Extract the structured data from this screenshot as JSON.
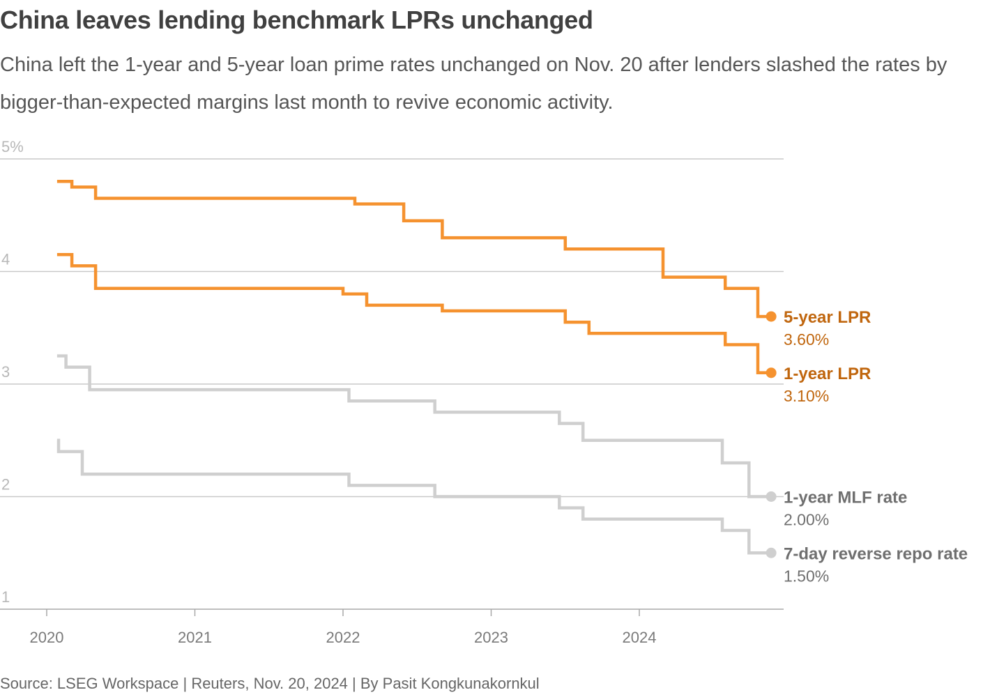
{
  "header": {
    "title": "China leaves lending benchmark LPRs unchanged",
    "subtitle": "China left the 1-year and 5-year loan prime rates unchanged on Nov. 20 after lenders slashed the rates by bigger-than-expected margins last month to revive economic activity."
  },
  "footer": {
    "source": "Source: LSEG Workspace | Reuters, Nov. 20, 2024 | By Pasit Kongkunakornkul"
  },
  "chart_data": {
    "type": "line",
    "step": true,
    "title": "China leaves lending benchmark LPRs unchanged",
    "xlabel": "",
    "ylabel": "",
    "xlim": [
      2019.8,
      2025.0
    ],
    "ylim": [
      1,
      5
    ],
    "grid": true,
    "y_ticks": [
      {
        "value": 5,
        "label": "5%"
      },
      {
        "value": 4,
        "label": "4"
      },
      {
        "value": 3,
        "label": "3"
      },
      {
        "value": 2,
        "label": "2"
      },
      {
        "value": 1,
        "label": "1"
      }
    ],
    "x_ticks": [
      {
        "value": 2020,
        "label": "2020"
      },
      {
        "value": 2021,
        "label": "2021"
      },
      {
        "value": 2022,
        "label": "2022"
      },
      {
        "value": 2023,
        "label": "2023"
      },
      {
        "value": 2024,
        "label": "2024"
      }
    ],
    "series": [
      {
        "name": "5-year LPR",
        "value_label": "3.60%",
        "color": "#f5922f",
        "label_color": "#c0660e",
        "points": [
          [
            2020.07,
            4.8
          ],
          [
            2020.17,
            4.75
          ],
          [
            2020.33,
            4.65
          ],
          [
            2022.08,
            4.6
          ],
          [
            2022.41,
            4.45
          ],
          [
            2022.67,
            4.3
          ],
          [
            2023.5,
            4.2
          ],
          [
            2024.16,
            3.95
          ],
          [
            2024.58,
            3.85
          ],
          [
            2024.8,
            3.6
          ],
          [
            2024.89,
            3.6
          ]
        ]
      },
      {
        "name": "1-year LPR",
        "value_label": "3.10%",
        "color": "#f5922f",
        "label_color": "#c0660e",
        "points": [
          [
            2020.07,
            4.15
          ],
          [
            2020.17,
            4.05
          ],
          [
            2020.33,
            3.85
          ],
          [
            2022.0,
            3.8
          ],
          [
            2022.16,
            3.7
          ],
          [
            2022.67,
            3.65
          ],
          [
            2023.5,
            3.55
          ],
          [
            2023.66,
            3.45
          ],
          [
            2024.58,
            3.35
          ],
          [
            2024.8,
            3.1
          ],
          [
            2024.89,
            3.1
          ]
        ]
      },
      {
        "name": "1-year MLF rate",
        "value_label": "2.00%",
        "color": "#cfcfcf",
        "label_color": "#6f6f6f",
        "points": [
          [
            2020.07,
            3.25
          ],
          [
            2020.13,
            3.15
          ],
          [
            2020.29,
            2.95
          ],
          [
            2022.04,
            2.85
          ],
          [
            2022.62,
            2.75
          ],
          [
            2023.46,
            2.65
          ],
          [
            2023.62,
            2.5
          ],
          [
            2024.56,
            2.3
          ],
          [
            2024.74,
            2.0
          ],
          [
            2024.89,
            2.0
          ]
        ]
      },
      {
        "name": "7-day reverse repo rate",
        "value_label": "1.50%",
        "color": "#cfcfcf",
        "label_color": "#6f6f6f",
        "points": [
          [
            2020.07,
            2.5
          ],
          [
            2020.08,
            2.4
          ],
          [
            2020.24,
            2.2
          ],
          [
            2022.04,
            2.1
          ],
          [
            2022.62,
            2.0
          ],
          [
            2023.46,
            1.9
          ],
          [
            2023.62,
            1.8
          ],
          [
            2024.56,
            1.7
          ],
          [
            2024.74,
            1.5
          ],
          [
            2024.89,
            1.5
          ]
        ]
      }
    ]
  }
}
